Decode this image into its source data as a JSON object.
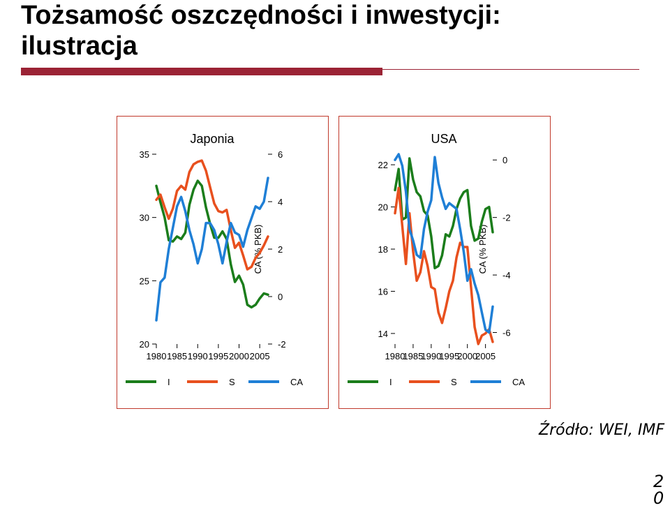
{
  "title_line1": "Tożsamość oszczędności i inwestycji:",
  "title_line2": "ilustracja",
  "source": "Źródło: WEI, IMF",
  "page_number": "20",
  "colors": {
    "accent_bar": "#9b2335",
    "I": "#1b7d1b",
    "S": "#e8501e",
    "CA": "#1f7fd6",
    "panel_border": "#c0392b"
  },
  "chart_data": [
    {
      "type": "line",
      "title": "Japonia",
      "xlabel": "",
      "ylabel_left": "",
      "ylabel_right": "CA (% PKB)",
      "x_ticks": [
        1980,
        1985,
        1990,
        1995,
        2000,
        2005
      ],
      "x_range": [
        1980,
        2007
      ],
      "y_left_range": [
        20,
        35
      ],
      "y_left_ticks": [
        20,
        25,
        30,
        35
      ],
      "y_right_range": [
        -2,
        6
      ],
      "y_right_ticks": [
        -2,
        0,
        2,
        4,
        6
      ],
      "legend": [
        "I",
        "S",
        "CA"
      ],
      "legend_position": "bottom",
      "x": [
        1980,
        1981,
        1982,
        1983,
        1984,
        1985,
        1986,
        1987,
        1988,
        1989,
        1990,
        1991,
        1992,
        1993,
        1994,
        1995,
        1996,
        1997,
        1998,
        1999,
        2000,
        2001,
        2002,
        2003,
        2004,
        2005,
        2006,
        2007
      ],
      "series": [
        {
          "name": "I",
          "axis": "left",
          "values": [
            32.5,
            31.2,
            30.0,
            28.2,
            28.1,
            28.5,
            28.3,
            28.8,
            31.0,
            32.2,
            32.9,
            32.5,
            30.8,
            29.5,
            28.4,
            28.4,
            28.9,
            28.3,
            26.3,
            24.9,
            25.4,
            24.7,
            23.1,
            22.9,
            23.1,
            23.6,
            24.0,
            23.9
          ]
        },
        {
          "name": "S",
          "axis": "left",
          "values": [
            31.4,
            31.8,
            30.8,
            29.9,
            30.7,
            32.1,
            32.5,
            32.2,
            33.6,
            34.2,
            34.4,
            34.5,
            33.7,
            32.4,
            31.1,
            30.5,
            30.4,
            30.6,
            29.0,
            27.6,
            28.0,
            27.0,
            25.9,
            26.1,
            26.8,
            27.2,
            27.8,
            28.5
          ]
        },
        {
          "name": "CA",
          "axis": "right",
          "values": [
            -1.0,
            0.6,
            0.8,
            2.0,
            2.9,
            3.8,
            4.2,
            3.6,
            2.8,
            2.2,
            1.4,
            2.0,
            3.1,
            3.1,
            2.8,
            2.2,
            1.4,
            2.3,
            3.1,
            2.7,
            2.6,
            2.1,
            2.8,
            3.3,
            3.8,
            3.7,
            4.0,
            5.0
          ]
        }
      ]
    },
    {
      "type": "line",
      "title": "USA",
      "xlabel": "",
      "ylabel_left": "",
      "ylabel_right": "CA (% PKB)",
      "x_ticks": [
        1980,
        1985,
        1990,
        1995,
        2000,
        2005
      ],
      "x_range": [
        1980,
        2007
      ],
      "y_left_range": [
        13.5,
        22.5
      ],
      "y_left_ticks": [
        14,
        16,
        18,
        20,
        22
      ],
      "y_right_range": [
        -6.4,
        0.2
      ],
      "y_right_ticks": [
        -6,
        -4,
        -2,
        0
      ],
      "legend": [
        "I",
        "S",
        "CA"
      ],
      "legend_position": "bottom",
      "x": [
        1980,
        1981,
        1982,
        1983,
        1984,
        1985,
        1986,
        1987,
        1988,
        1989,
        1990,
        1991,
        1992,
        1993,
        1994,
        1995,
        1996,
        1997,
        1998,
        1999,
        2000,
        2001,
        2002,
        2003,
        2004,
        2005,
        2006,
        2007
      ],
      "series": [
        {
          "name": "I",
          "axis": "left",
          "values": [
            20.8,
            21.8,
            19.4,
            19.5,
            22.3,
            21.3,
            20.7,
            20.5,
            19.8,
            19.6,
            18.6,
            17.1,
            17.2,
            17.7,
            18.7,
            18.6,
            19.1,
            19.9,
            20.4,
            20.7,
            20.8,
            19.1,
            18.4,
            18.5,
            19.3,
            19.9,
            20.0,
            18.8
          ]
        },
        {
          "name": "S",
          "axis": "left",
          "values": [
            19.7,
            20.9,
            19.1,
            17.3,
            19.7,
            17.9,
            16.5,
            16.9,
            17.9,
            17.2,
            16.2,
            16.1,
            15.0,
            14.5,
            15.2,
            16.0,
            16.5,
            17.6,
            18.3,
            18.1,
            18.1,
            16.2,
            14.3,
            13.5,
            13.9,
            14.0,
            14.2,
            13.6
          ]
        },
        {
          "name": "CA",
          "axis": "right",
          "values": [
            0.0,
            0.2,
            -0.2,
            -1.1,
            -2.4,
            -2.8,
            -3.3,
            -3.4,
            -2.4,
            -1.8,
            -1.4,
            0.1,
            -0.8,
            -1.3,
            -1.7,
            -1.5,
            -1.6,
            -1.7,
            -2.4,
            -3.2,
            -4.2,
            -3.8,
            -4.3,
            -4.7,
            -5.3,
            -5.9,
            -6.0,
            -5.1
          ]
        }
      ]
    }
  ]
}
